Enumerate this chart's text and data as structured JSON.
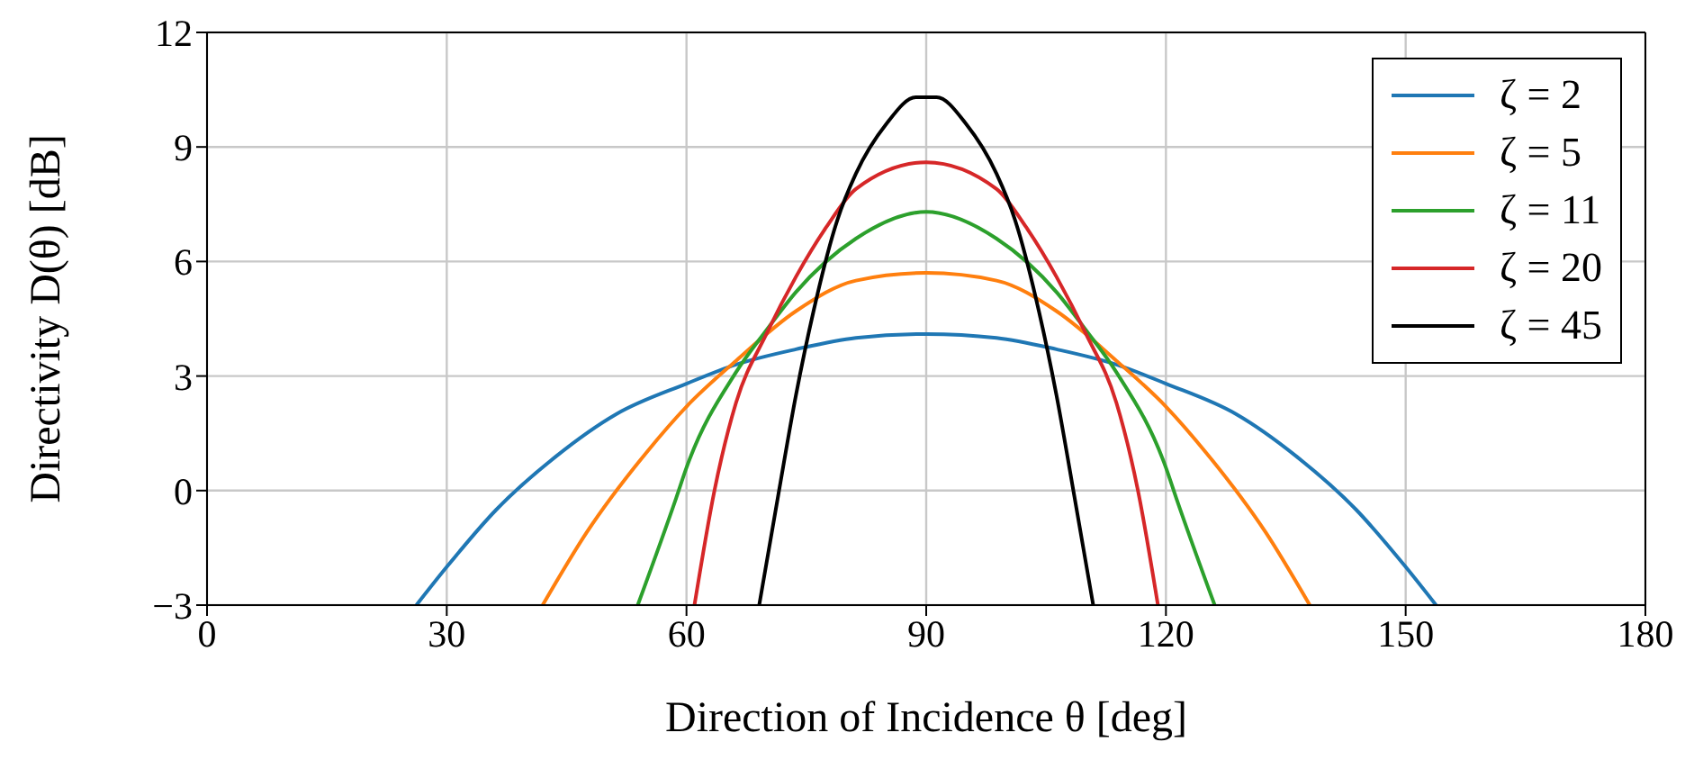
{
  "chart_data": {
    "type": "line",
    "xlabel": "Direction of Incidence θ [deg]",
    "ylabel": "Directivity D(θ) [dB]",
    "xlim": [
      0,
      180
    ],
    "xticks": [
      0,
      30,
      60,
      90,
      120,
      150,
      180
    ],
    "ylim": [
      -3,
      12
    ],
    "yticks": [
      {
        "value": -3,
        "label": "−3"
      },
      0,
      3,
      6,
      9,
      12
    ],
    "grid": true,
    "legend": "top right",
    "line_style": "solid",
    "marker": "none",
    "series": [
      {
        "name": "ζ = 2",
        "color": "#1f77b4",
        "x": [
          26.2,
          30,
          36.2,
          43.7,
          51.2,
          60,
          66.2,
          73.7,
          81.2,
          90,
          98.8,
          106.3,
          113.8,
          120,
          128.8,
          136.3,
          143.8,
          150,
          153.8
        ],
        "values": [
          -3,
          -2,
          -0.5,
          0.9,
          2,
          2.8,
          3.3,
          3.7,
          4,
          4.1,
          4,
          3.7,
          3.3,
          2.8,
          2,
          0.9,
          -0.5,
          -2,
          -3
        ]
      },
      {
        "name": "ζ = 5",
        "color": "#ff7f0e",
        "x": [
          42,
          47.5,
          55,
          60,
          66.2,
          73.7,
          81.2,
          90,
          98.8,
          106.3,
          113.8,
          120,
          125,
          132.5,
          138
        ],
        "values": [
          -3,
          -1.1,
          1,
          2.2,
          3.4,
          4.7,
          5.5,
          5.7,
          5.5,
          4.7,
          3.4,
          2.2,
          1,
          -1.1,
          -3
        ]
      },
      {
        "name": "ζ = 11",
        "color": "#2ca02c",
        "x": [
          53.9,
          58.7,
          60,
          66.2,
          70,
          73.7,
          81.2,
          90,
          98.8,
          106.3,
          110,
          113.8,
          120,
          121.3,
          126.1
        ],
        "values": [
          -3,
          -0.2,
          0.6,
          3.1,
          4.2,
          5.2,
          6.6,
          7.3,
          6.6,
          5.2,
          4.2,
          3.1,
          0.6,
          -0.2,
          -3
        ]
      },
      {
        "name": "ζ = 20",
        "color": "#d62728",
        "x": [
          61,
          63.5,
          66.2,
          70,
          73.7,
          77.5,
          81.2,
          90,
          98.8,
          102.5,
          106.3,
          110,
          113.8,
          116.5,
          119
        ],
        "values": [
          -3,
          0,
          2.3,
          4.1,
          5.6,
          6.9,
          7.9,
          8.6,
          7.9,
          6.9,
          5.6,
          4.1,
          2.3,
          0,
          -3
        ]
      },
      {
        "name": "ζ = 45",
        "color": "#000000",
        "x": [
          69.1,
          71.5,
          73.7,
          75.9,
          78.9,
          81.2,
          85,
          88.7,
          90,
          91.3,
          95,
          98.8,
          101.1,
          104.1,
          106.3,
          108.5,
          110.9
        ],
        "values": [
          -3,
          -0.1,
          2.5,
          4.7,
          7.1,
          8.3,
          9.6,
          10.3,
          10.3,
          10.3,
          9.6,
          8.3,
          7.1,
          4.7,
          2.5,
          -0.1,
          -3
        ]
      }
    ]
  }
}
